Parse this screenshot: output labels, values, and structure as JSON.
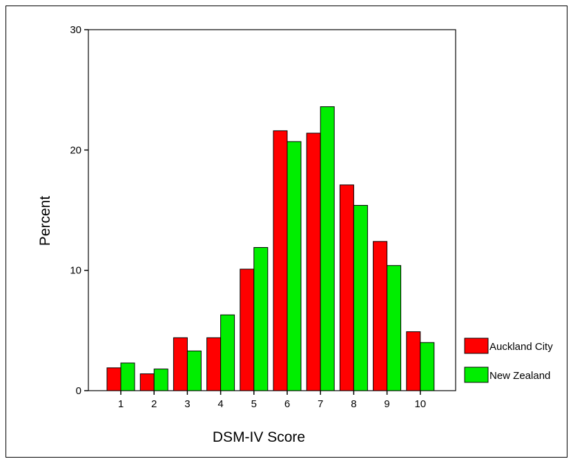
{
  "chart_data": {
    "type": "bar",
    "title": "",
    "xlabel": "DSM-IV Score",
    "ylabel": "Percent",
    "categories": [
      "1",
      "2",
      "3",
      "4",
      "5",
      "6",
      "7",
      "8",
      "9",
      "10"
    ],
    "ylim": [
      0,
      30
    ],
    "yticks": [
      0,
      10,
      20,
      30
    ],
    "grid": false,
    "legend_position": "right",
    "series": [
      {
        "name": "Auckland City",
        "color": "#ff0000",
        "values": [
          1.9,
          1.4,
          4.4,
          4.4,
          10.1,
          21.6,
          21.4,
          17.1,
          12.4,
          4.9
        ]
      },
      {
        "name": "New Zealand",
        "color": "#00ee00",
        "values": [
          2.3,
          1.8,
          3.3,
          6.3,
          11.9,
          20.7,
          23.6,
          15.4,
          10.4,
          4.0
        ]
      }
    ]
  }
}
